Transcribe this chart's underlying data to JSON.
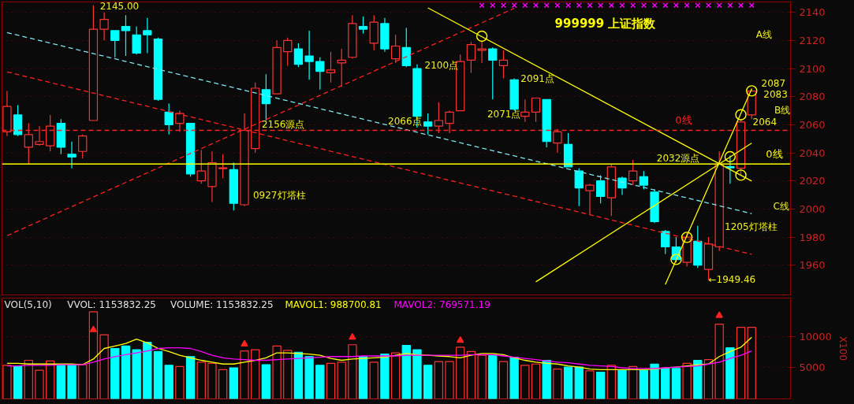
{
  "chart_data": [
    {
      "type": "candlestick",
      "title": "999999 上证指数",
      "categories": [
        null,
        null,
        null,
        null,
        null,
        null,
        null,
        null,
        null,
        null,
        null,
        null,
        null,
        null,
        null,
        null,
        null,
        null,
        null,
        null,
        null,
        null,
        null,
        null,
        null,
        null,
        null,
        null,
        null,
        null,
        null,
        null,
        null,
        null,
        null,
        null,
        null,
        null,
        null,
        null,
        null,
        null,
        null,
        null,
        null,
        null,
        null,
        null,
        null,
        null,
        null,
        null,
        null,
        null,
        null,
        null,
        null,
        null,
        null,
        null,
        null,
        null,
        null,
        null,
        null,
        null,
        null,
        null,
        null,
        null
      ],
      "ohlc": [
        [
          2055,
          2084,
          2052,
          2073
        ],
        [
          2067,
          2074,
          2052,
          2053
        ],
        [
          2044,
          2061,
          2032,
          2053
        ],
        [
          2046,
          2059,
          2045,
          2048
        ],
        [
          2045,
          2067,
          2041,
          2059
        ],
        [
          2061,
          2064,
          2039,
          2044
        ],
        [
          2039,
          2048,
          2029,
          2037
        ],
        [
          2041,
          2053,
          2036,
          2052
        ],
        [
          2063,
          2145,
          2063,
          2128
        ],
        [
          2128,
          2140,
          2120,
          2135
        ],
        [
          2127,
          2127,
          2108,
          2120
        ],
        [
          2130,
          2138,
          2109,
          2127
        ],
        [
          2124,
          2130,
          2110,
          2111
        ],
        [
          2127,
          2136,
          2111,
          2124
        ],
        [
          2121,
          2122,
          2077,
          2078
        ],
        [
          2069,
          2075,
          2053,
          2060
        ],
        [
          2061,
          2070,
          2055,
          2068
        ],
        [
          2061,
          2061,
          2023,
          2025
        ],
        [
          2020,
          2042,
          2018,
          2027
        ],
        [
          2016,
          2041,
          2005,
          2033
        ],
        [
          2028.7,
          2039,
          2022,
          2029.3
        ],
        [
          2028,
          2033,
          1999,
          2004
        ],
        [
          2003,
          2068,
          2002,
          2056
        ],
        [
          2043,
          2090,
          2040,
          2086
        ],
        [
          2085,
          2096,
          2063,
          2075
        ],
        [
          2082,
          2120,
          2082,
          2115
        ],
        [
          2112,
          2122,
          2102,
          2120
        ],
        [
          2114,
          2118,
          2101,
          2103
        ],
        [
          2109,
          2127,
          2092,
          2105
        ],
        [
          2105,
          2108,
          2085,
          2098
        ],
        [
          2097,
          2112,
          2090,
          2099
        ],
        [
          2104,
          2114,
          2087,
          2106
        ],
        [
          2108,
          2138,
          2107,
          2132
        ],
        [
          2130,
          2137,
          2125,
          2128
        ],
        [
          2118,
          2138,
          2113,
          2133
        ],
        [
          2132,
          2136,
          2112,
          2114
        ],
        [
          2107,
          2124,
          2104,
          2116
        ],
        [
          2115,
          2129,
          2101,
          2102
        ],
        [
          2100,
          2103,
          2058,
          2066
        ],
        [
          2062,
          2068,
          2053,
          2059
        ],
        [
          2059,
          2076,
          2054,
          2063
        ],
        [
          2061,
          2070,
          2054,
          2069
        ],
        [
          2070,
          2110,
          2070,
          2105
        ],
        [
          2106,
          2119,
          2097,
          2117
        ],
        [
          2113,
          2120,
          2104,
          2114
        ],
        [
          2114,
          2115,
          2078,
          2106
        ],
        [
          2102,
          2113,
          2093,
          2106
        ],
        [
          2092,
          2093,
          2070,
          2071
        ],
        [
          2066,
          2078,
          2062,
          2069
        ],
        [
          2069,
          2079,
          2062,
          2079
        ],
        [
          2078,
          2078,
          2044,
          2048
        ],
        [
          2047,
          2057,
          2040,
          2055
        ],
        [
          2046,
          2054,
          2030,
          2030
        ],
        [
          2027,
          2029,
          2002,
          2015
        ],
        [
          2013,
          2018,
          1996,
          2017
        ],
        [
          2020,
          2024,
          2004,
          2009
        ],
        [
          2008,
          2032,
          1995,
          2030
        ],
        [
          2022,
          2023,
          2010,
          2015
        ],
        [
          2020,
          2035,
          2017,
          2027
        ],
        [
          2023,
          2027,
          2014,
          2017
        ],
        [
          2012,
          2014,
          1990,
          1991
        ],
        [
          1984,
          1985,
          1968,
          1973
        ],
        [
          1973,
          1980,
          1962,
          1964
        ],
        [
          1962,
          1983,
          1959,
          1980
        ],
        [
          1977,
          1988,
          1958,
          1960
        ],
        [
          1957,
          1980,
          1949.46,
          1975
        ],
        [
          1973,
          2041,
          1970,
          2032
        ],
        [
          2030.2,
          2038,
          2018,
          2029.3
        ],
        [
          2029,
          2064,
          2024,
          2062
        ],
        [
          2067,
          2086,
          2064,
          2084
        ]
      ],
      "colors": [
        "#ff3232",
        "#00ffff",
        "#ff3232",
        "#ff3232",
        "#ff3232",
        "#00ffff",
        "#00ffff",
        "#ff3232",
        "#ff3232",
        "#ff3232",
        "#00ffff",
        "#00ffff",
        "#00ffff",
        "#00ffff",
        "#00ffff",
        "#00ffff",
        "#ff3232",
        "#00ffff",
        "#ff3232",
        "#ff3232",
        "#ff3232",
        "#00ffff",
        "#ff3232",
        "#ff3232",
        "#00ffff",
        "#ff3232",
        "#ff3232",
        "#00ffff",
        "#00ffff",
        "#00ffff",
        "#ff3232",
        "#ff3232",
        "#ff3232",
        "#00ffff",
        "#ff3232",
        "#00ffff",
        "#ff3232",
        "#00ffff",
        "#00ffff",
        "#00ffff",
        "#ff3232",
        "#ff3232",
        "#ff3232",
        "#ff3232",
        "#ff3232",
        "#00ffff",
        "#ff3232",
        "#00ffff",
        "#ff3232",
        "#ff3232",
        "#00ffff",
        "#ff3232",
        "#00ffff",
        "#00ffff",
        "#ff3232",
        "#00ffff",
        "#ff3232",
        "#00ffff",
        "#ff3232",
        "#00ffff",
        "#00ffff",
        "#00ffff",
        "#00ffff",
        "#ff3232",
        "#00ffff",
        "#ff3232",
        "#ff3232",
        "#00ffff",
        "#ff3232",
        "#ff3232"
      ],
      "series": [
        {
          "type": "line",
          "color": "#7fe5f0",
          "line_style": "dashed",
          "values": [
            2125.6,
            null,
            null,
            null,
            null,
            null,
            null,
            null,
            null,
            null,
            null,
            null,
            null,
            null,
            null,
            null,
            null,
            null,
            null,
            null,
            null,
            null,
            null,
            null,
            null,
            null,
            null,
            null,
            null,
            null,
            null,
            null,
            null,
            null,
            null,
            null,
            null,
            null,
            null,
            null,
            null,
            null,
            null,
            null,
            null,
            null,
            null,
            null,
            null,
            null,
            null,
            null,
            null,
            null,
            null,
            null,
            null,
            null,
            null,
            null,
            null,
            null,
            null,
            null,
            null,
            null,
            null,
            null,
            null,
            1996.7
          ]
        },
        {
          "type": "line",
          "color": "#ff2020",
          "line_style": "dashed",
          "values": [
            2097.6,
            null,
            null,
            null,
            null,
            null,
            null,
            null,
            null,
            null,
            null,
            null,
            null,
            null,
            null,
            null,
            null,
            null,
            null,
            null,
            null,
            null,
            null,
            null,
            null,
            null,
            null,
            null,
            null,
            null,
            null,
            null,
            null,
            null,
            null,
            null,
            null,
            null,
            null,
            null,
            null,
            null,
            null,
            null,
            null,
            null,
            null,
            null,
            null,
            null,
            null,
            null,
            null,
            null,
            null,
            null,
            null,
            null,
            null,
            null,
            null,
            null,
            null,
            null,
            null,
            null,
            null,
            null,
            null,
            1967.7
          ]
        },
        {
          "type": "line",
          "color": "#ff2020",
          "line_style": "dashed",
          "values": [
            1981.0,
            null,
            null,
            null,
            null,
            null,
            null,
            null,
            null,
            null,
            null,
            null,
            null,
            null,
            null,
            null,
            null,
            null,
            null,
            null,
            null,
            null,
            null,
            null,
            null,
            null,
            null,
            null,
            null,
            null,
            null,
            null,
            null,
            null,
            null,
            null,
            null,
            null,
            null,
            null,
            null,
            null,
            null,
            null,
            null,
            null,
            null,
            2142.9,
            null,
            null,
            null,
            null,
            null,
            null,
            null,
            null,
            null,
            null,
            null,
            null,
            null,
            null,
            null,
            null,
            null,
            null,
            null,
            null,
            null,
            null
          ]
        },
        {
          "type": "line",
          "color": "#ffff00",
          "line_style": "solid",
          "values": [
            null,
            null,
            null,
            null,
            null,
            null,
            null,
            null,
            null,
            null,
            null,
            null,
            null,
            null,
            null,
            null,
            null,
            null,
            null,
            null,
            null,
            null,
            null,
            null,
            null,
            null,
            null,
            null,
            null,
            null,
            null,
            null,
            null,
            null,
            null,
            null,
            null,
            null,
            null,
            2143.2,
            null,
            null,
            null,
            null,
            null,
            null,
            null,
            null,
            null,
            null,
            null,
            null,
            null,
            null,
            null,
            null,
            null,
            null,
            null,
            null,
            null,
            null,
            null,
            null,
            null,
            null,
            null,
            null,
            null,
            2019.9
          ]
        },
        {
          "type": "line",
          "color": "#ffff00",
          "line_style": "solid",
          "values": [
            null,
            null,
            null,
            null,
            null,
            null,
            null,
            null,
            null,
            null,
            null,
            null,
            null,
            null,
            null,
            null,
            null,
            null,
            null,
            null,
            null,
            null,
            null,
            null,
            null,
            null,
            null,
            null,
            null,
            null,
            null,
            null,
            null,
            null,
            null,
            null,
            null,
            null,
            null,
            null,
            null,
            null,
            null,
            null,
            null,
            null,
            null,
            null,
            null,
            null,
            null,
            null,
            null,
            null,
            null,
            null,
            null,
            null,
            null,
            null,
            null,
            1946.2,
            null,
            null,
            null,
            null,
            null,
            null,
            null,
            2085.4
          ]
        },
        {
          "type": "line",
          "color": "#ffff00",
          "line_style": "solid",
          "values": [
            null,
            null,
            null,
            null,
            null,
            null,
            null,
            null,
            null,
            null,
            null,
            null,
            null,
            null,
            null,
            null,
            null,
            null,
            null,
            null,
            null,
            null,
            null,
            null,
            null,
            null,
            null,
            null,
            null,
            null,
            null,
            null,
            null,
            null,
            null,
            null,
            null,
            null,
            null,
            null,
            null,
            null,
            null,
            null,
            null,
            null,
            null,
            null,
            null,
            1948.1,
            null,
            null,
            null,
            null,
            null,
            null,
            null,
            null,
            null,
            null,
            null,
            null,
            null,
            null,
            null,
            null,
            null,
            null,
            null,
            2046.9
          ]
        },
        {
          "type": "scatter",
          "color": "#ffff00",
          "marker": "circle",
          "values": [
            null,
            null,
            null,
            null,
            null,
            null,
            null,
            null,
            null,
            null,
            null,
            null,
            null,
            null,
            null,
            null,
            null,
            null,
            null,
            null,
            null,
            null,
            null,
            null,
            null,
            null,
            null,
            null,
            null,
            null,
            null,
            null,
            null,
            null,
            null,
            null,
            null,
            null,
            null,
            null,
            null,
            null,
            null,
            null,
            2123,
            null,
            null,
            null,
            null,
            null,
            null,
            null,
            null,
            null,
            null,
            null,
            null,
            null,
            null,
            null,
            null,
            null,
            1964.1,
            1979.8,
            null,
            null,
            null,
            2037.2,
            2067.1,
            2084.1
          ]
        },
        {
          "type": "scatter",
          "color": "#ffff00",
          "marker": "circle",
          "values": [
            null,
            null,
            null,
            null,
            null,
            null,
            null,
            null,
            null,
            null,
            null,
            null,
            null,
            null,
            null,
            null,
            null,
            null,
            null,
            null,
            null,
            null,
            null,
            null,
            null,
            null,
            null,
            null,
            null,
            null,
            null,
            null,
            null,
            null,
            null,
            null,
            null,
            null,
            null,
            null,
            null,
            null,
            null,
            null,
            null,
            null,
            null,
            null,
            null,
            null,
            null,
            null,
            null,
            null,
            null,
            null,
            null,
            null,
            null,
            null,
            null,
            null,
            null,
            null,
            null,
            null,
            null,
            null,
            2024.1,
            null
          ]
        },
        {
          "type": "scatter",
          "color": "#ff00ff",
          "marker": "cross",
          "values": [
            null,
            null,
            null,
            null,
            null,
            null,
            null,
            null,
            null,
            null,
            null,
            null,
            null,
            null,
            null,
            null,
            null,
            null,
            null,
            null,
            null,
            null,
            null,
            null,
            null,
            null,
            null,
            null,
            null,
            null,
            null,
            null,
            null,
            null,
            null,
            null,
            null,
            null,
            null,
            null,
            null,
            null,
            null,
            null,
            2145,
            2145,
            2145,
            2145,
            2145,
            2145,
            2145,
            2145,
            2145,
            2145,
            2145,
            2145,
            2145,
            2145,
            2145,
            2145,
            2145,
            2145,
            2145,
            2145,
            2145,
            2145,
            2145,
            2145,
            2145,
            2145
          ]
        }
      ],
      "ref_lines": [
        {
          "axis": "y",
          "value": 2056,
          "label": "0线",
          "color": "#ff2020",
          "line_style": "dashed"
        },
        {
          "axis": "y",
          "value": 2032,
          "label": "0线",
          "color": "#ffff00",
          "line_style": "solid"
        }
      ],
      "annotations": [
        "2145.00",
        "2156源点",
        "0927灯塔柱",
        "2066点",
        "2100点",
        "2071点",
        "2091点",
        "2032源点",
        "A线",
        "B线",
        "C线",
        "1205灯塔柱",
        "←1949.46",
        "2087",
        "2083",
        "2064"
      ],
      "ylim": [
        1938.8,
        2147.4
      ],
      "yticks": [
        1960,
        1980,
        2000,
        2020,
        2040,
        2060,
        2080,
        2100,
        2120,
        2140
      ],
      "grid": "y",
      "tick_labels": "y"
    },
    {
      "type": "bar",
      "title": "VOL(5,10)",
      "ylabel": "X100",
      "categories": [
        null,
        null,
        null,
        null,
        null,
        null,
        null,
        null,
        null,
        null,
        null,
        null,
        null,
        null,
        null,
        null,
        null,
        null,
        null,
        null,
        null,
        null,
        null,
        null,
        null,
        null,
        null,
        null,
        null,
        null,
        null,
        null,
        null,
        null,
        null,
        null,
        null,
        null,
        null,
        null,
        null,
        null,
        null,
        null,
        null,
        null,
        null,
        null,
        null,
        null,
        null,
        null,
        null,
        null,
        null,
        null,
        null,
        null,
        null,
        null,
        null,
        null,
        null,
        null,
        null,
        null,
        null,
        null,
        null,
        null
      ],
      "values": [
        5400,
        5300,
        6200,
        4600,
        6100,
        5500,
        5500,
        5500,
        14000,
        10300,
        8100,
        8500,
        7900,
        9100,
        7600,
        5400,
        5200,
        6800,
        5900,
        5700,
        4700,
        5000,
        7700,
        7900,
        5500,
        8500,
        7800,
        7500,
        6800,
        5400,
        5700,
        5900,
        8700,
        6800,
        5900,
        7200,
        7400,
        8600,
        7900,
        5400,
        6000,
        6000,
        8300,
        7600,
        7000,
        7000,
        6000,
        6700,
        5400,
        5600,
        6200,
        4800,
        5100,
        5100,
        4500,
        4300,
        5400,
        4600,
        5200,
        4600,
        5600,
        4900,
        4900,
        5700,
        6200,
        6300,
        12000,
        8200,
        11500,
        11500
      ],
      "colors": [
        "#ff3232",
        "#00ffff",
        "#ff3232",
        "#ff3232",
        "#ff3232",
        "#00ffff",
        "#00ffff",
        "#ff3232",
        "#ff3232",
        "#ff3232",
        "#00ffff",
        "#00ffff",
        "#00ffff",
        "#00ffff",
        "#00ffff",
        "#00ffff",
        "#ff3232",
        "#00ffff",
        "#ff3232",
        "#ff3232",
        "#ff3232",
        "#00ffff",
        "#ff3232",
        "#ff3232",
        "#00ffff",
        "#ff3232",
        "#ff3232",
        "#00ffff",
        "#00ffff",
        "#00ffff",
        "#ff3232",
        "#ff3232",
        "#ff3232",
        "#00ffff",
        "#ff3232",
        "#00ffff",
        "#ff3232",
        "#00ffff",
        "#00ffff",
        "#00ffff",
        "#ff3232",
        "#ff3232",
        "#ff3232",
        "#ff3232",
        "#ff3232",
        "#00ffff",
        "#ff3232",
        "#00ffff",
        "#ff3232",
        "#ff3232",
        "#00ffff",
        "#ff3232",
        "#00ffff",
        "#00ffff",
        "#ff3232",
        "#00ffff",
        "#ff3232",
        "#00ffff",
        "#ff3232",
        "#00ffff",
        "#00ffff",
        "#00ffff",
        "#00ffff",
        "#ff3232",
        "#00ffff",
        "#ff3232",
        "#ff3232",
        "#00ffff",
        "#ff3232",
        "#ff3232"
      ],
      "series": [
        {
          "type": "line",
          "name": "MAVOL1: 988700.81",
          "color": "#ffff00",
          "values": [
            5700,
            5700,
            5600,
            5600,
            5600,
            5600,
            5600,
            5500,
            6400,
            8100,
            8500,
            8900,
            9600,
            9000,
            8100,
            7600,
            7000,
            6600,
            6200,
            5900,
            5600,
            5600,
            5900,
            6200,
            6600,
            7400,
            7400,
            7300,
            7200,
            7000,
            6500,
            6200,
            6400,
            6500,
            6600,
            6700,
            7000,
            7300,
            7100,
            7000,
            6900,
            6800,
            6600,
            7000,
            7300,
            7300,
            7100,
            6600,
            6200,
            5900,
            5700,
            5600,
            5300,
            5100,
            4800,
            4700,
            4700,
            4700,
            4700,
            4700,
            4800,
            5000,
            5100,
            5300,
            5500,
            5600,
            6800,
            7600,
            8300,
            9900
          ]
        },
        {
          "type": "line",
          "name": "MAVOL2: 769571.19",
          "color": "#ff00ff",
          "values": [
            5300,
            5300,
            5400,
            5400,
            5400,
            5500,
            5500,
            5500,
            5900,
            6400,
            6800,
            7100,
            7400,
            7700,
            8100,
            8200,
            8200,
            8100,
            7600,
            7000,
            6600,
            6400,
            6300,
            6200,
            6200,
            6300,
            6400,
            6500,
            6600,
            6700,
            6800,
            6800,
            6800,
            6900,
            6900,
            6900,
            6900,
            7000,
            7000,
            7000,
            7000,
            7000,
            7000,
            7100,
            7100,
            7100,
            6900,
            6700,
            6500,
            6300,
            6100,
            5900,
            5800,
            5600,
            5400,
            5300,
            5200,
            5000,
            4900,
            4900,
            4900,
            5000,
            5100,
            5200,
            5300,
            5600,
            5900,
            6500,
            7000,
            7700
          ]
        },
        {
          "type": "scatter",
          "color": "#ff2020",
          "marker": "triangle",
          "values": [
            null,
            null,
            null,
            null,
            null,
            null,
            null,
            null,
            11100,
            null,
            null,
            null,
            null,
            null,
            null,
            null,
            null,
            null,
            null,
            null,
            null,
            null,
            8800,
            null,
            null,
            null,
            null,
            null,
            null,
            null,
            null,
            null,
            9900,
            null,
            null,
            null,
            null,
            null,
            null,
            null,
            null,
            null,
            9400,
            null,
            null,
            null,
            null,
            null,
            null,
            null,
            null,
            null,
            null,
            null,
            null,
            null,
            null,
            null,
            null,
            null,
            null,
            null,
            null,
            null,
            null,
            null,
            13400,
            null,
            null,
            null
          ]
        }
      ],
      "annotations": [
        "VVOL: 1153832.25",
        "VOLUME: 1153832.25"
      ],
      "ylim": [
        0,
        16200
      ],
      "yticks": [
        5000,
        10000
      ],
      "grid": "y",
      "tick_labels": "y"
    }
  ]
}
